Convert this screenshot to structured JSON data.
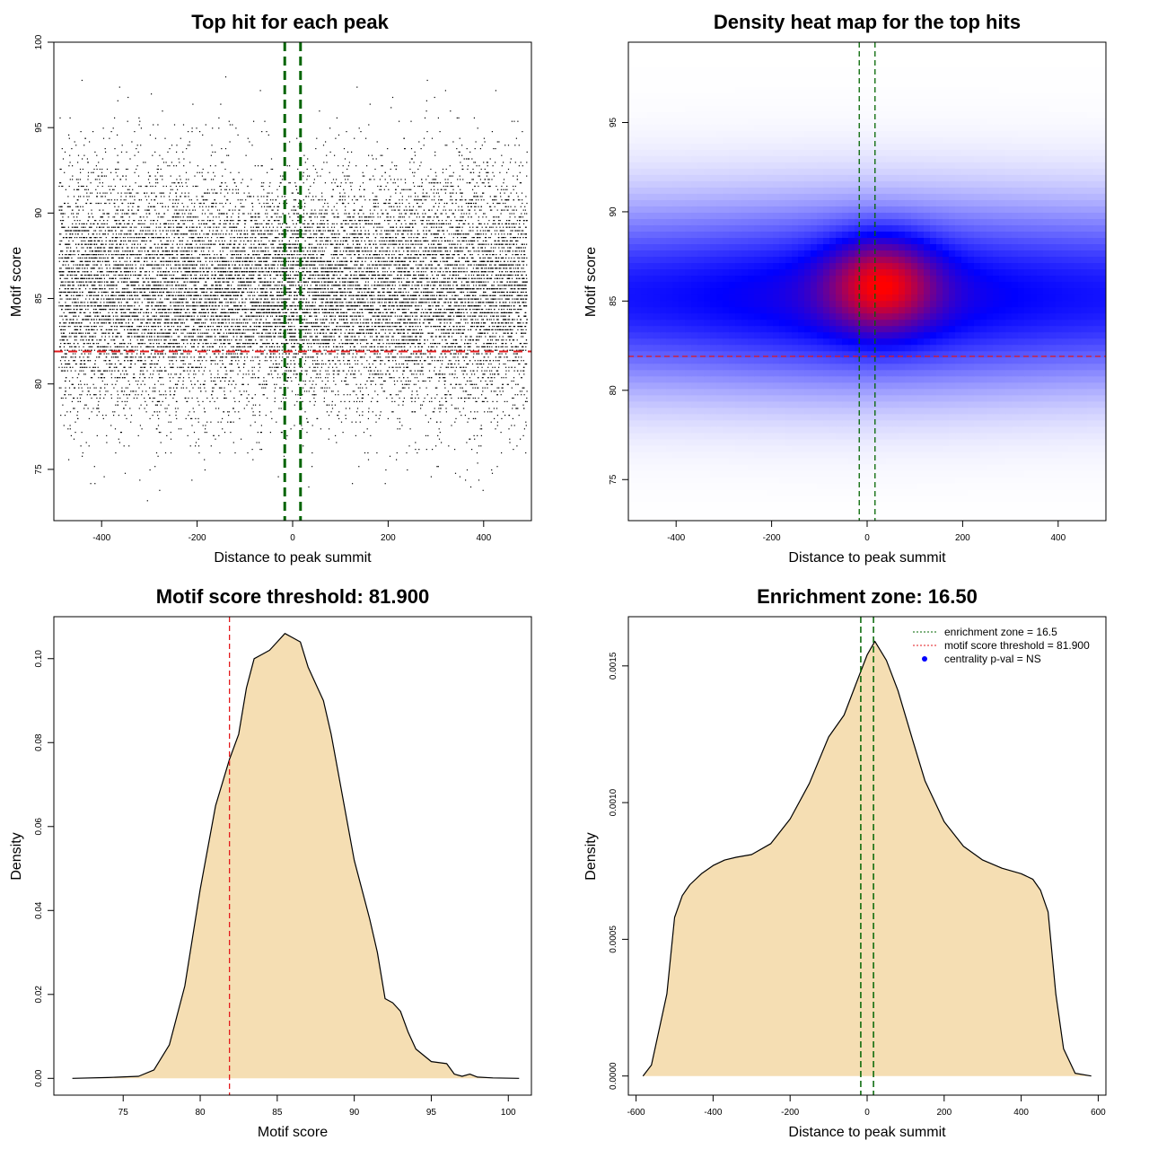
{
  "chart_data": [
    {
      "type": "scatter",
      "title": "Top hit for each peak",
      "xlabel": "Distance to peak summit",
      "ylabel": "Motif score",
      "xlim": [
        -500,
        500
      ],
      "ylim": [
        72,
        100
      ],
      "xticks": [
        -400,
        -200,
        0,
        200,
        400
      ],
      "yticks": [
        75,
        80,
        85,
        90,
        95,
        100
      ],
      "grid": false,
      "point_cloud": {
        "x_range": [
          -490,
          490
        ],
        "score_mean": 85.5,
        "score_sd": 3.6,
        "score_range": [
          72.7,
          98.2
        ],
        "approx_points": 16000
      },
      "hlines": [
        {
          "y": 81.9,
          "color": "#e31a1c",
          "style": "dashed"
        }
      ],
      "vlines": [
        {
          "x": -16.5,
          "color": "#006400",
          "style": "dashed"
        },
        {
          "x": 16.5,
          "color": "#006400",
          "style": "dashed"
        }
      ]
    },
    {
      "type": "heatmap",
      "title": "Density heat map for the top hits",
      "xlabel": "Distance to peak summit",
      "ylabel": "Motif score",
      "xlim": [
        -500,
        500
      ],
      "ylim": [
        72.7,
        99.5
      ],
      "xticks": [
        -400,
        -200,
        0,
        200,
        400
      ],
      "yticks": [
        75,
        80,
        85,
        90,
        95
      ],
      "colors": [
        "#ffffff",
        "#0000ff",
        "#ff0000"
      ],
      "density_peak": {
        "x": 30,
        "y": 86
      },
      "hlines": [
        {
          "y": 81.9,
          "color": "#e31a1c",
          "style": "dashed"
        }
      ],
      "vlines": [
        {
          "x": -16.5,
          "color": "#006400",
          "style": "dashed"
        },
        {
          "x": 16.5,
          "color": "#006400",
          "style": "dashed"
        }
      ]
    },
    {
      "type": "area",
      "title": "Motif score threshold: 81.900",
      "xlabel": "Motif score",
      "ylabel": "Density",
      "xlim": [
        70.5,
        101.5
      ],
      "ylim": [
        -0.004,
        0.11
      ],
      "xticks": [
        75,
        80,
        85,
        90,
        95,
        100
      ],
      "yticks": [
        0.0,
        0.02,
        0.04,
        0.06,
        0.08,
        0.1
      ],
      "ytick_labels": [
        "0.00",
        "0.02",
        "0.04",
        "0.06",
        "0.08",
        "0.10"
      ],
      "fill": "#f5deb3",
      "x": [
        71.7,
        74,
        76,
        77,
        78,
        79,
        80,
        81,
        81.9,
        82.5,
        83,
        83.5,
        84,
        84.5,
        85,
        85.5,
        86,
        86.5,
        87,
        87.5,
        88,
        88.5,
        89,
        90,
        91,
        91.5,
        92,
        92.5,
        93,
        93.5,
        94,
        95,
        96,
        96.5,
        97,
        97.5,
        98,
        99,
        100.7
      ],
      "y": [
        0,
        0.0002,
        0.0005,
        0.002,
        0.008,
        0.022,
        0.045,
        0.065,
        0.076,
        0.082,
        0.093,
        0.1,
        0.101,
        0.102,
        0.104,
        0.106,
        0.105,
        0.104,
        0.098,
        0.094,
        0.09,
        0.082,
        0.072,
        0.052,
        0.038,
        0.03,
        0.019,
        0.018,
        0.016,
        0.011,
        0.007,
        0.004,
        0.0035,
        0.001,
        0.0005,
        0.001,
        0.0003,
        0.0001,
        0
      ],
      "vlines": [
        {
          "x": 81.9,
          "color": "#e31a1c",
          "style": "dashed"
        }
      ]
    },
    {
      "type": "area",
      "title": "Enrichment zone: 16.50",
      "xlabel": "Distance to peak summit",
      "ylabel": "Density",
      "xlim": [
        -620,
        620
      ],
      "ylim": [
        -7e-05,
        0.00168
      ],
      "xticks": [
        -600,
        -400,
        -200,
        0,
        200,
        400,
        600
      ],
      "yticks": [
        0,
        0.0005,
        0.001,
        0.0015
      ],
      "ytick_labels": [
        "0.0000",
        "0.0005",
        "0.0010",
        "0.0015"
      ],
      "fill": "#f5deb3",
      "x": [
        -582,
        -560,
        -520,
        -500,
        -480,
        -460,
        -430,
        -400,
        -370,
        -340,
        -300,
        -250,
        -200,
        -150,
        -100,
        -60,
        -30,
        0,
        20,
        50,
        80,
        120,
        150,
        200,
        250,
        300,
        350,
        400,
        430,
        450,
        470,
        490,
        510,
        540,
        582
      ],
      "y": [
        0,
        4e-05,
        0.0003,
        0.00058,
        0.00066,
        0.0007,
        0.00074,
        0.00077,
        0.00079,
        0.0008,
        0.00081,
        0.00085,
        0.00094,
        0.00107,
        0.00124,
        0.00132,
        0.00143,
        0.00154,
        0.00159,
        0.00152,
        0.00141,
        0.00122,
        0.00108,
        0.00093,
        0.00084,
        0.00079,
        0.00076,
        0.00074,
        0.00072,
        0.00068,
        0.0006,
        0.0003,
        0.0001,
        1e-05,
        0
      ],
      "vlines": [
        {
          "x": -16.5,
          "color": "#006400",
          "style": "dashed"
        },
        {
          "x": 16.5,
          "color": "#006400",
          "style": "dashed"
        }
      ],
      "legend": {
        "placement": "top-right",
        "items": [
          {
            "label": "enrichment zone = 16.5",
            "color": "#006400",
            "kind": "dotted-line"
          },
          {
            "label": "motif score threshold = 81.900",
            "color": "#e31a1c",
            "kind": "dotted-line"
          },
          {
            "label": "centrality p-val = NS",
            "color": "#0000ff",
            "kind": "point"
          }
        ]
      }
    }
  ]
}
